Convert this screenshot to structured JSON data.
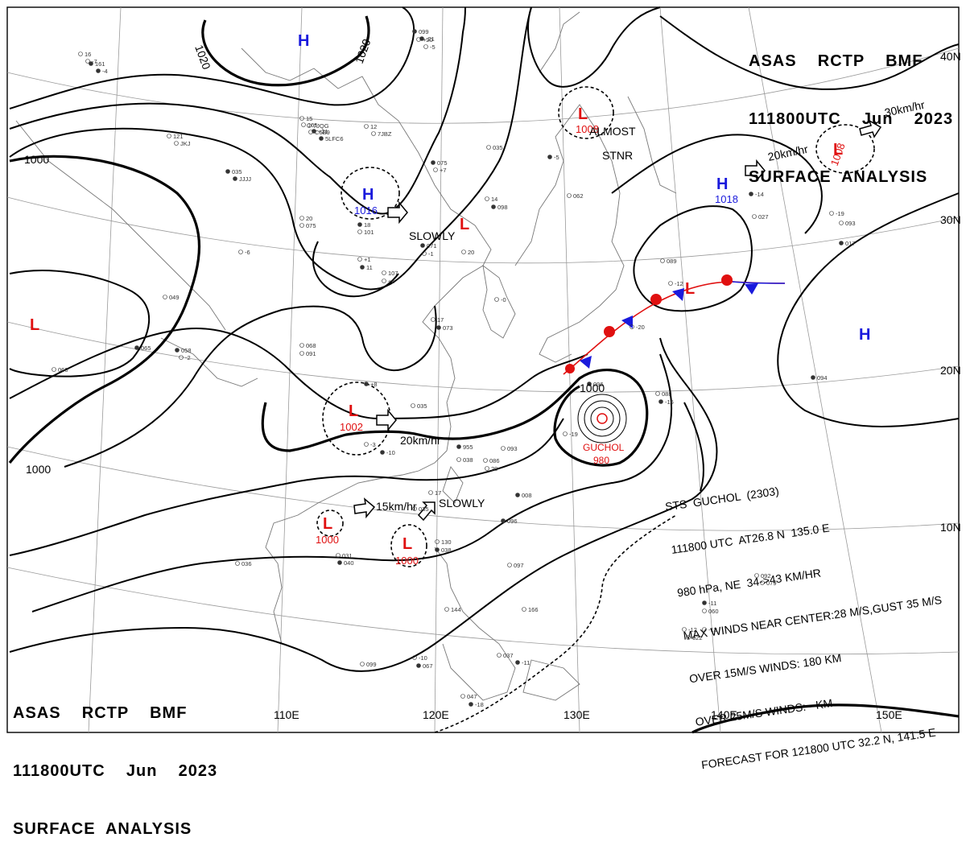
{
  "header": {
    "line1": "ASAS    RCTP    BMF",
    "line2": "111800UTC    Jun    2023",
    "line3": "SURFACE  ANALYSIS"
  },
  "lon_labels": [
    "110E",
    "120E",
    "130E",
    "140E",
    "150E"
  ],
  "lat_labels": [
    "40N",
    "30N",
    "20N",
    "10N"
  ],
  "pressure_centers": {
    "high_north": {
      "symbol": "H"
    },
    "high_china": {
      "symbol": "H",
      "value": "1016"
    },
    "high_pacific": {
      "symbol": "H",
      "value": "1018"
    },
    "high_east": {
      "symbol": "H"
    },
    "low_west": {
      "symbol": "L"
    },
    "low_slowly": {
      "symbol": "L"
    },
    "low_japan_sea": {
      "symbol": "L",
      "value": "1008"
    },
    "low_kuril": {
      "symbol": "L",
      "value": "1008"
    },
    "low_front": {
      "symbol": "L"
    },
    "low_scs_north": {
      "symbol": "L",
      "value": "1002"
    },
    "low_scs_west": {
      "symbol": "L",
      "value": "1000"
    },
    "low_scs_east": {
      "symbol": "L",
      "value": "1000"
    }
  },
  "isobar_labels": [
    "1020",
    "1020",
    "1000",
    "1000",
    "1000"
  ],
  "movement_labels": {
    "slowly_1": "SLOWLY",
    "almost_stnr_1": "ALMOST",
    "almost_stnr_2": "STNR",
    "speed_20_east": "20km/hr",
    "speed_30": "30km/hr",
    "speed_20_scs": "20km/hr",
    "speed_15": "15km/hr",
    "slowly_2": "SLOWLY"
  },
  "typhoon": {
    "name": "GUCHOL",
    "pressure": "980",
    "info_lines": [
      "STS  GUCHOL  (2303)",
      "111800 UTC  AT26.8 N  135.0 E",
      "980 hPa, NE  34->43 KM/HR",
      "MAX WINDS NEAR CENTER:28 M/S,GUST 35 M/S",
      "OVER 15M/S WINDS: 180 KM",
      "OVER 25M/S WINDS: - KM",
      "FORECAST FOR 121800 UTC 32.2 N, 141.5 E"
    ]
  },
  "colors": {
    "high": "#1a1adc",
    "low": "#e01010",
    "warm_front": "#e01010",
    "cold_front": "#1a1adc",
    "isobar": "#000000"
  },
  "stations": [
    "099",
    "+20",
    "16",
    "161",
    "15",
    "165",
    "+21",
    "12",
    "121",
    "035",
    "20",
    "075",
    "18",
    "101",
    "+1",
    "11",
    "107",
    "+5",
    "071",
    "-1",
    "20",
    "075",
    "+7",
    "035",
    "-5",
    "062",
    "14",
    "098",
    "-0",
    "17",
    "073",
    "068",
    "091",
    "058",
    "-2",
    "060",
    "065",
    "-6",
    "049",
    "+8",
    "035",
    "-3",
    "955",
    "086",
    "20",
    "008",
    "17",
    "130",
    "038",
    "035",
    "031",
    "040",
    "036",
    "-10",
    "067",
    "037",
    "047",
    "-18",
    "-12",
    "022",
    "-11",
    "060",
    "088",
    "-16",
    "092",
    "079",
    "094",
    "-19",
    "093",
    "-14",
    "089",
    "-20",
    "096",
    "-19",
    "099",
    "-11",
    "166",
    "144",
    "-10",
    "038",
    "093",
    "096",
    "097",
    "027",
    "017",
    "-13",
    "-12",
    "-21",
    "-5",
    "-7",
    "-4",
    "7JQG",
    "C6B9",
    "5LFC6",
    "7JBZ",
    "JKJ",
    "JJJJ"
  ]
}
